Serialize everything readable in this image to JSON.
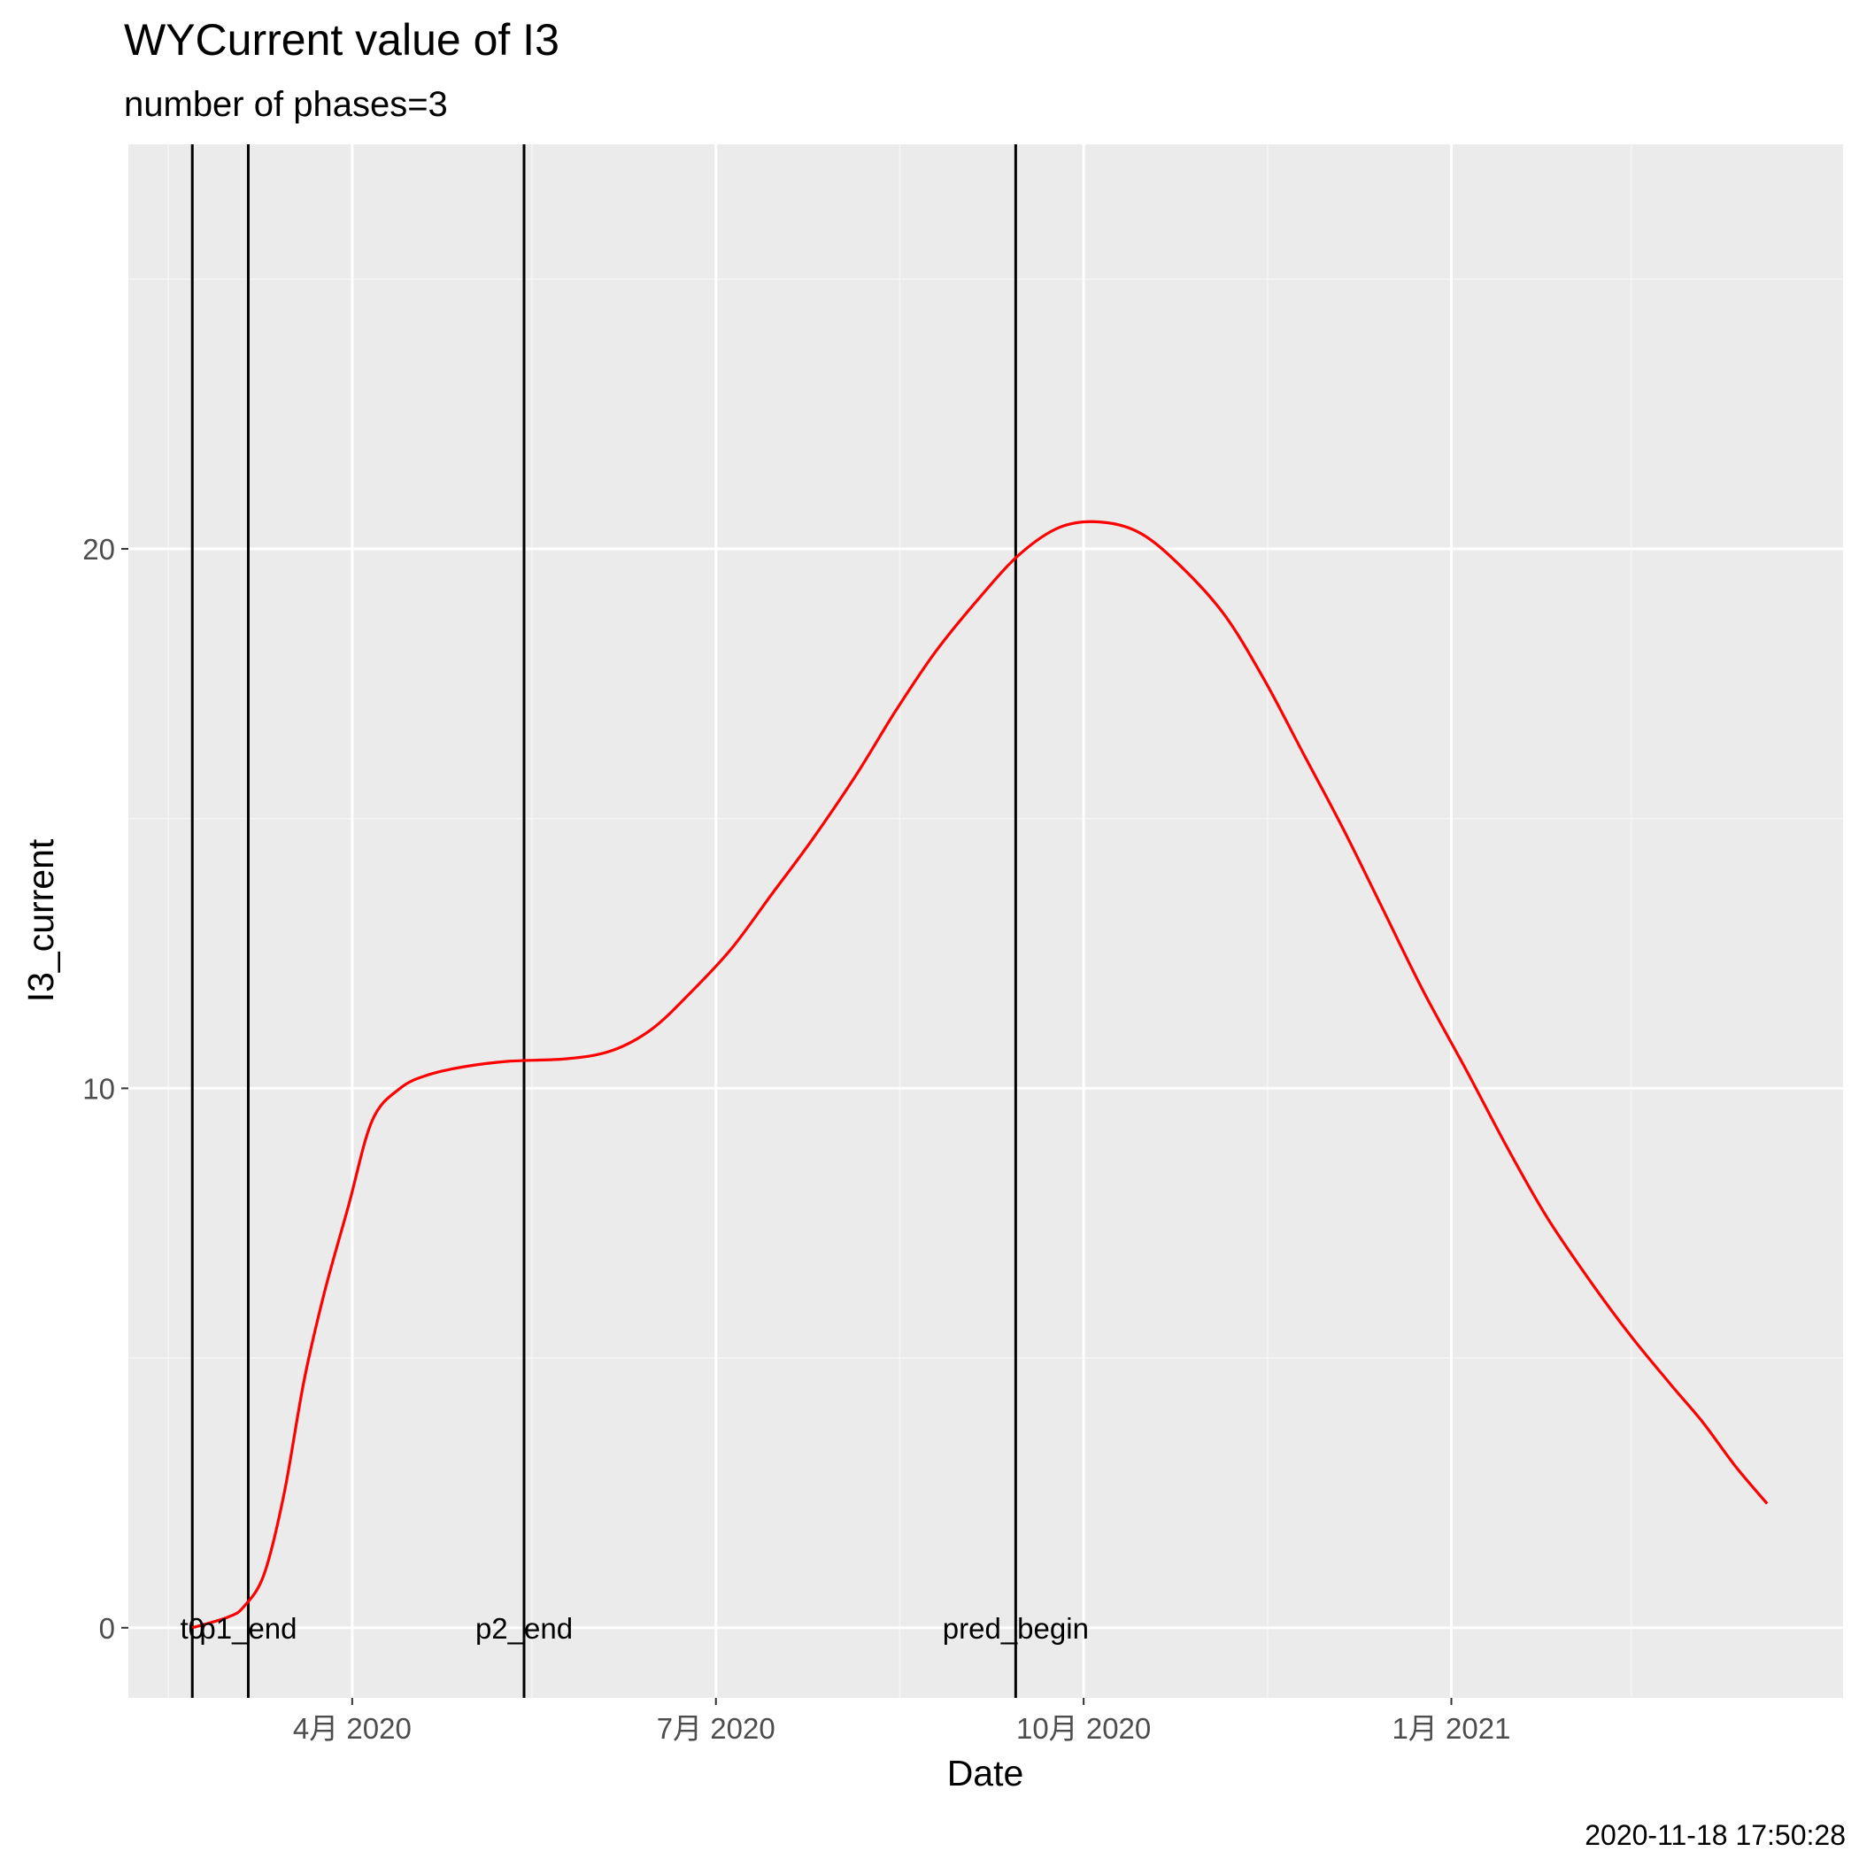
{
  "chart_data": {
    "type": "line",
    "title": "WYCurrent value of I3",
    "subtitle": "number of phases=3",
    "xlabel": "Date",
    "ylabel": "I3_current",
    "caption": "2020-11-18 17:50:28",
    "xlim": [
      "2020-02-05",
      "2021-04-09"
    ],
    "ylim": [
      -1.3,
      27.5
    ],
    "x_ticks": [
      {
        "date": "2020-04-01",
        "label": "4月 2020"
      },
      {
        "date": "2020-07-01",
        "label": "7月 2020"
      },
      {
        "date": "2020-10-01",
        "label": "10月 2020"
      },
      {
        "date": "2021-01-01",
        "label": "1月 2021"
      }
    ],
    "x_minor_ticks": [
      "2020-02-15",
      "2020-05-16",
      "2020-08-16",
      "2020-11-16",
      "2021-02-15"
    ],
    "y_ticks": [
      0,
      10,
      20
    ],
    "y_minor_ticks": [
      5,
      15,
      25
    ],
    "grid": true,
    "series": [
      {
        "color": "#ff0000",
        "points": [
          [
            "2020-02-21",
            0.0
          ],
          [
            "2020-03-01",
            0.2
          ],
          [
            "2020-03-05",
            0.4
          ],
          [
            "2020-03-10",
            1.0
          ],
          [
            "2020-03-15",
            2.5
          ],
          [
            "2020-03-20",
            4.6
          ],
          [
            "2020-03-25",
            6.2
          ],
          [
            "2020-03-31",
            7.8
          ],
          [
            "2020-04-06",
            9.4
          ],
          [
            "2020-04-13",
            10.0
          ],
          [
            "2020-04-20",
            10.25
          ],
          [
            "2020-04-29",
            10.4
          ],
          [
            "2020-05-10",
            10.5
          ],
          [
            "2020-05-25",
            10.55
          ],
          [
            "2020-06-05",
            10.7
          ],
          [
            "2020-06-15",
            11.1
          ],
          [
            "2020-06-25",
            11.8
          ],
          [
            "2020-07-05",
            12.6
          ],
          [
            "2020-07-15",
            13.6
          ],
          [
            "2020-07-25",
            14.6
          ],
          [
            "2020-08-05",
            15.8
          ],
          [
            "2020-08-15",
            17.0
          ],
          [
            "2020-08-25",
            18.1
          ],
          [
            "2020-09-05",
            19.1
          ],
          [
            "2020-09-15",
            19.9
          ],
          [
            "2020-09-25",
            20.4
          ],
          [
            "2020-10-05",
            20.5
          ],
          [
            "2020-10-15",
            20.3
          ],
          [
            "2020-10-25",
            19.7
          ],
          [
            "2020-11-05",
            18.8
          ],
          [
            "2020-11-15",
            17.6
          ],
          [
            "2020-11-25",
            16.2
          ],
          [
            "2020-12-05",
            14.8
          ],
          [
            "2020-12-15",
            13.3
          ],
          [
            "2020-12-25",
            11.8
          ],
          [
            "2021-01-05",
            10.3
          ],
          [
            "2021-01-15",
            8.9
          ],
          [
            "2021-01-25",
            7.6
          ],
          [
            "2021-02-05",
            6.4
          ],
          [
            "2021-02-15",
            5.4
          ],
          [
            "2021-02-25",
            4.5
          ],
          [
            "2021-03-05",
            3.8
          ],
          [
            "2021-03-13",
            3.0
          ],
          [
            "2021-03-21",
            2.3
          ]
        ]
      }
    ],
    "vlines": [
      {
        "date": "2020-02-21",
        "label": "t0"
      },
      {
        "date": "2020-03-06",
        "label": "p1_end"
      },
      {
        "date": "2020-05-14",
        "label": "p2_end"
      },
      {
        "date": "2020-09-14",
        "label": "pred_begin"
      }
    ]
  },
  "colors": {
    "panel_background": "#ebebeb",
    "grid_major": "#ffffff",
    "grid_minor": "#f5f5f5",
    "line": "#ff0000",
    "vline": "#000000"
  }
}
